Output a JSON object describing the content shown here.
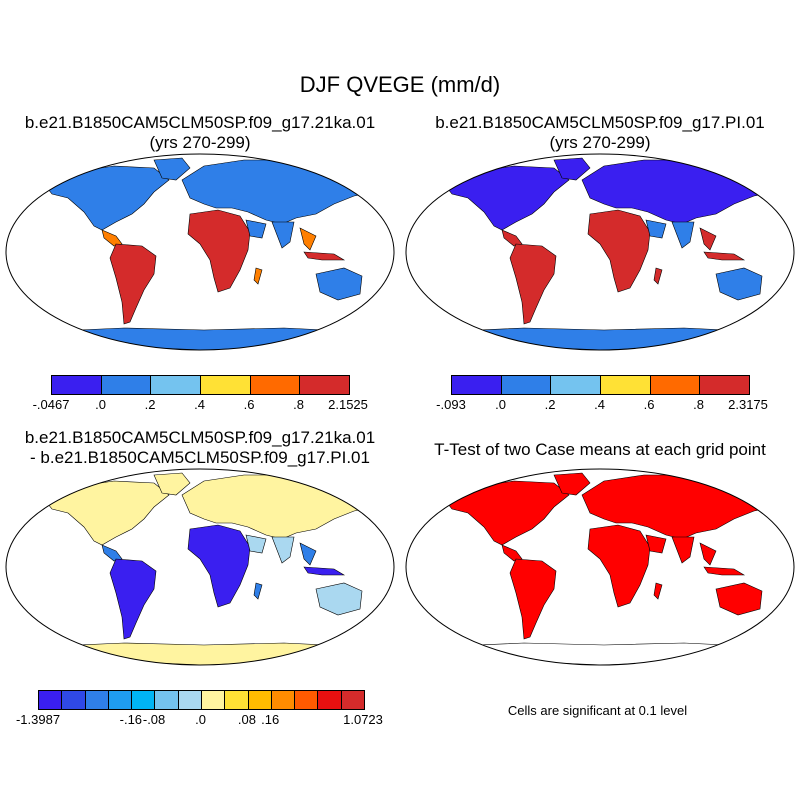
{
  "title": "DJF QVEGE (mm/d)",
  "panels": [
    {
      "title_lines": [
        "b.e21.B1850CAM5CLM50SP.f09_g17.21ka.01",
        "(yrs 270-299)"
      ],
      "ocean": "#ffffff",
      "land": "#2f7fe8",
      "north": "#2f7fe8",
      "tropic": "#d42b2b",
      "tropic2": "#ff7f00",
      "ice": "#2f7fe8",
      "ice_north": false
    },
    {
      "title_lines": [
        "b.e21.B1850CAM5CLM50SP.f09_g17.PI.01",
        "(yrs 270-299)"
      ],
      "ocean": "#ffffff",
      "land": "#2f7fe8",
      "north": "#3a1ff0",
      "tropic": "#d42b2b",
      "tropic2": "#d42b2b",
      "ice": "#2f7fe8",
      "ice_north": false
    },
    {
      "title_lines": [
        "b.e21.B1850CAM5CLM50SP.f09_g17.21ka.01",
        "- b.e21.B1850CAM5CLM50SP.f09_g17.PI.01"
      ],
      "ocean": "#ffffff",
      "land": "#aad8f0",
      "north": "#fff4a0",
      "tropic": "#3a1ff0",
      "tropic2": "#2f7fe8",
      "ice": "#fff4a0",
      "ice_north": true
    },
    {
      "title_lines": [
        "T-Test of two Case means at each grid point"
      ],
      "ocean": "#ffffff",
      "land": "#ff0000",
      "north": "#ff0000",
      "tropic": "#ff0000",
      "tropic2": "#ff0000",
      "ice": "#ffffff",
      "ice_north": false
    }
  ],
  "colorbars": [
    {
      "colors": [
        "#3a1ff0",
        "#2f7fe8",
        "#74c3ef",
        "#ffe135",
        "#ff6a00",
        "#d42b2b"
      ],
      "labels": [
        "-.0467",
        ".0",
        ".2",
        ".4",
        ".6",
        ".8",
        "2.1525"
      ]
    },
    {
      "colors": [
        "#3a1ff0",
        "#2f7fe8",
        "#74c3ef",
        "#ffe135",
        "#ff6a00",
        "#d42b2b"
      ],
      "labels": [
        "-.093",
        ".0",
        ".2",
        ".4",
        ".6",
        ".8",
        "2.3175"
      ]
    },
    {
      "colors": [
        "#3a1ff0",
        "#2f49e6",
        "#2f7fe8",
        "#1f9cf0",
        "#00b4f5",
        "#74c3ef",
        "#aad8f0",
        "#fff4a0",
        "#ffe135",
        "#ffbb00",
        "#ff8c00",
        "#ff5a00",
        "#e81010",
        "#d42b2b"
      ],
      "labels": [
        "-1.3987",
        "",
        "",
        "",
        "",
        "",
        "",
        "",
        "",
        "",
        "",
        "",
        "",
        "",
        "1.0723"
      ],
      "mid_labels": [
        "-.16",
        "-.08",
        ".0",
        ".08",
        ".16"
      ]
    }
  ],
  "significance_note": "Cells are significant at 0.1 level"
}
